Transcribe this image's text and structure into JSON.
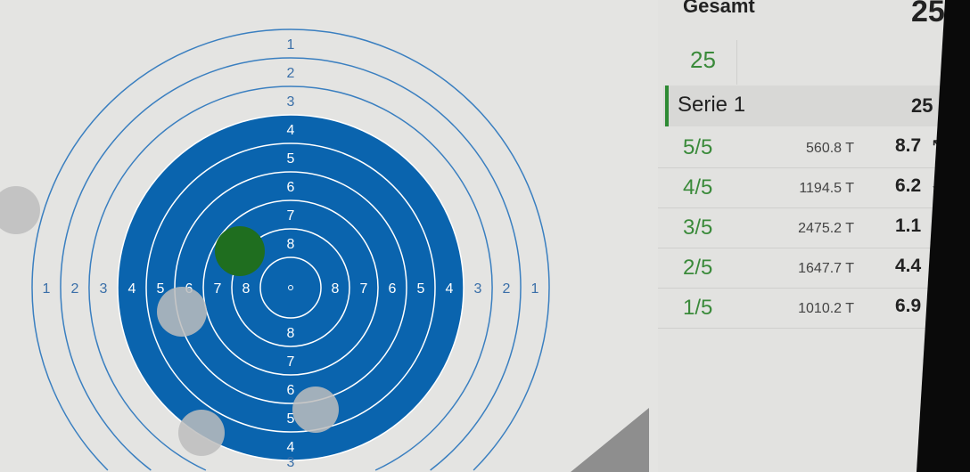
{
  "target": {
    "ring_color": "#3a7fc0",
    "black_color": "#0a64ae",
    "ring_labels": [
      "1",
      "2",
      "3",
      "4",
      "5",
      "6",
      "7",
      "8"
    ],
    "shots": [
      {
        "color": "#1f6e1f",
        "latest": true
      },
      {
        "color": "#bdbdbd"
      },
      {
        "color": "#bdbdbd"
      },
      {
        "color": "#bdbdbd"
      },
      {
        "color": "#bdbdbd"
      }
    ]
  },
  "panel": {
    "total_label": "Gesamt",
    "total_value": "25",
    "sub_total": "25",
    "series": {
      "label": "Serie 1",
      "value": "25"
    },
    "shots": [
      {
        "num": "5/5",
        "time": "560.8 T",
        "score": "8.7",
        "arrow": "↖"
      },
      {
        "num": "4/5",
        "time": "1194.5 T",
        "score": "6.2",
        "arrow": "↓"
      },
      {
        "num": "3/5",
        "time": "2475.2 T",
        "score": "1.1",
        "arrow": "↖"
      },
      {
        "num": "2/5",
        "time": "1647.7 T",
        "score": "4.4",
        "arrow": "↙"
      },
      {
        "num": "1/5",
        "time": "1010.2 T",
        "score": "6.9",
        "arrow": "←"
      }
    ]
  }
}
